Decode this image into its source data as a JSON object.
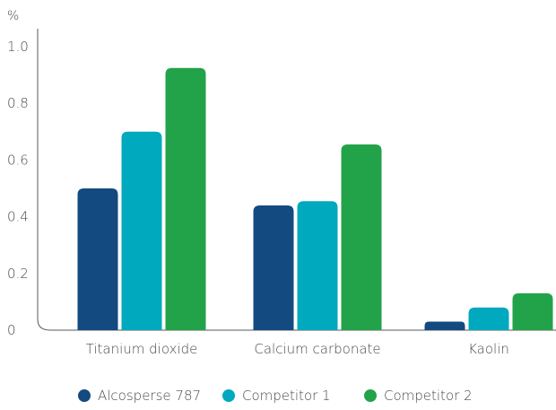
{
  "chart_data": {
    "type": "bar",
    "unit_label": "%",
    "categories": [
      "Titanium dioxide",
      "Calcium carbonate",
      "Kaolin"
    ],
    "series": [
      {
        "name": "Alcosperse 787",
        "color": "#134a80",
        "values": [
          0.5,
          0.44,
          0.03
        ]
      },
      {
        "name": "Competitor 1",
        "color": "#00a9bd",
        "values": [
          0.7,
          0.455,
          0.08
        ]
      },
      {
        "name": "Competitor 2",
        "color": "#22a34a",
        "values": [
          0.925,
          0.655,
          0.13
        ]
      }
    ],
    "ylim": [
      0,
      1.0
    ],
    "yticks": [
      0,
      0.2,
      0.4,
      0.6,
      0.8,
      1.0
    ],
    "ytick_labels": [
      "0",
      "0.2",
      "0.4",
      "0.6",
      "0.8",
      "1.0"
    ],
    "grid": false,
    "legend_position": "bottom"
  }
}
